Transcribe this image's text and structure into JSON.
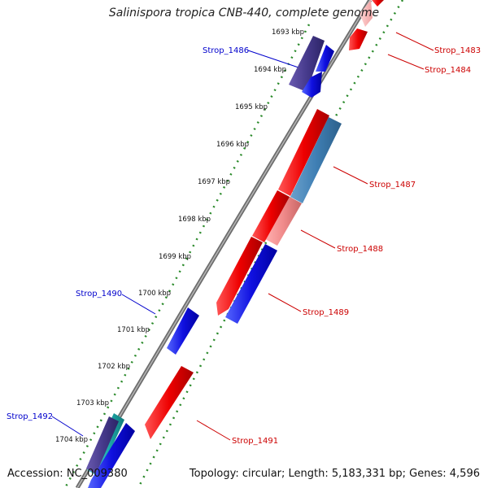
{
  "map": {
    "title": "Salinispora tropica CNB-440, complete genome",
    "accession_text": "Accession: NC_009380",
    "summary_text": "Topology: circular; Length: 5,183,331 bp; Genes: 4,596"
  },
  "colors": {
    "forward_strand": "#ee0000",
    "reverse_strand": "#1a1adb",
    "backbone": "#7d7d7d",
    "tick_marks": "#2a8a2a",
    "label_forward": "#cc0000",
    "label_reverse": "#0000cc"
  },
  "ticks": [
    "1693 kbp",
    "1694 kbp",
    "1695 kbp",
    "1696 kbp",
    "1697 kbp",
    "1698 kbp",
    "1699 kbp",
    "1700 kbp",
    "1701 kbp",
    "1702 kbp",
    "1703 kbp",
    "1704 kbp"
  ],
  "genes": [
    {
      "name": "Strop_1483",
      "strand": "forward"
    },
    {
      "name": "Strop_1484",
      "strand": "forward"
    },
    {
      "name": "Strop_1486",
      "strand": "reverse"
    },
    {
      "name": "Strop_1487",
      "strand": "forward"
    },
    {
      "name": "Strop_1488",
      "strand": "forward"
    },
    {
      "name": "Strop_1489",
      "strand": "forward"
    },
    {
      "name": "Strop_1490",
      "strand": "reverse"
    },
    {
      "name": "Strop_1491",
      "strand": "forward"
    },
    {
      "name": "Strop_1492",
      "strand": "reverse"
    }
  ]
}
